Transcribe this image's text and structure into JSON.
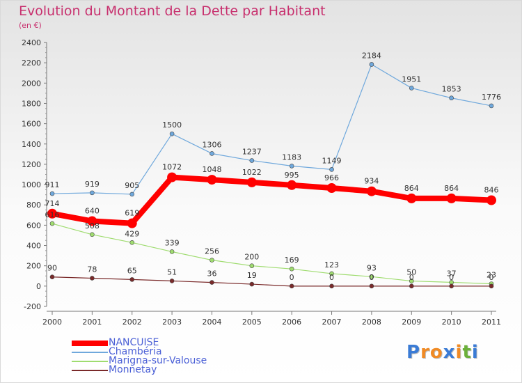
{
  "header": {
    "title": "Evolution du Montant de la Dette par Habitant",
    "subtitle": "(en €)"
  },
  "logo": {
    "text": "Proxiti",
    "letters": [
      "P",
      "r",
      "o",
      "x",
      "i",
      "t",
      "i"
    ],
    "colors": [
      "#3a7bd5",
      "#f08a24",
      "#f08a24",
      "#3a7bd5",
      "#f08a24",
      "#6bb03a",
      "#3a7bd5"
    ]
  },
  "chart_data": {
    "type": "line",
    "categories": [
      "2000",
      "2001",
      "2002",
      "2003",
      "2004",
      "2005",
      "2006",
      "2007",
      "2008",
      "2009",
      "2010",
      "2011"
    ],
    "ylim": [
      -200,
      2400
    ],
    "yticks": [
      -200,
      0,
      200,
      400,
      600,
      800,
      1000,
      1200,
      1400,
      1600,
      1800,
      2000,
      2200,
      2400
    ],
    "grid": false,
    "legend_position": "bottom-left",
    "series": [
      {
        "name": "NANCUISE",
        "color": "#ff0000",
        "values": [
          714,
          640,
          619,
          1072,
          1048,
          1022,
          995,
          966,
          934,
          864,
          864,
          846
        ]
      },
      {
        "name": "Chambéria",
        "color": "#6fa8dc",
        "values": [
          911,
          919,
          905,
          1500,
          1306,
          1237,
          1183,
          1149,
          2184,
          1951,
          1853,
          1776
        ]
      },
      {
        "name": "Marigna-sur-Valouse",
        "color": "#9fdc6f",
        "values": [
          616,
          508,
          429,
          339,
          256,
          200,
          169,
          123,
          93,
          50,
          37,
          23
        ]
      },
      {
        "name": "Monnetay",
        "color": "#7a2a2a",
        "values": [
          90,
          78,
          65,
          51,
          36,
          19,
          0,
          0,
          0,
          0,
          0,
          0
        ]
      }
    ]
  }
}
